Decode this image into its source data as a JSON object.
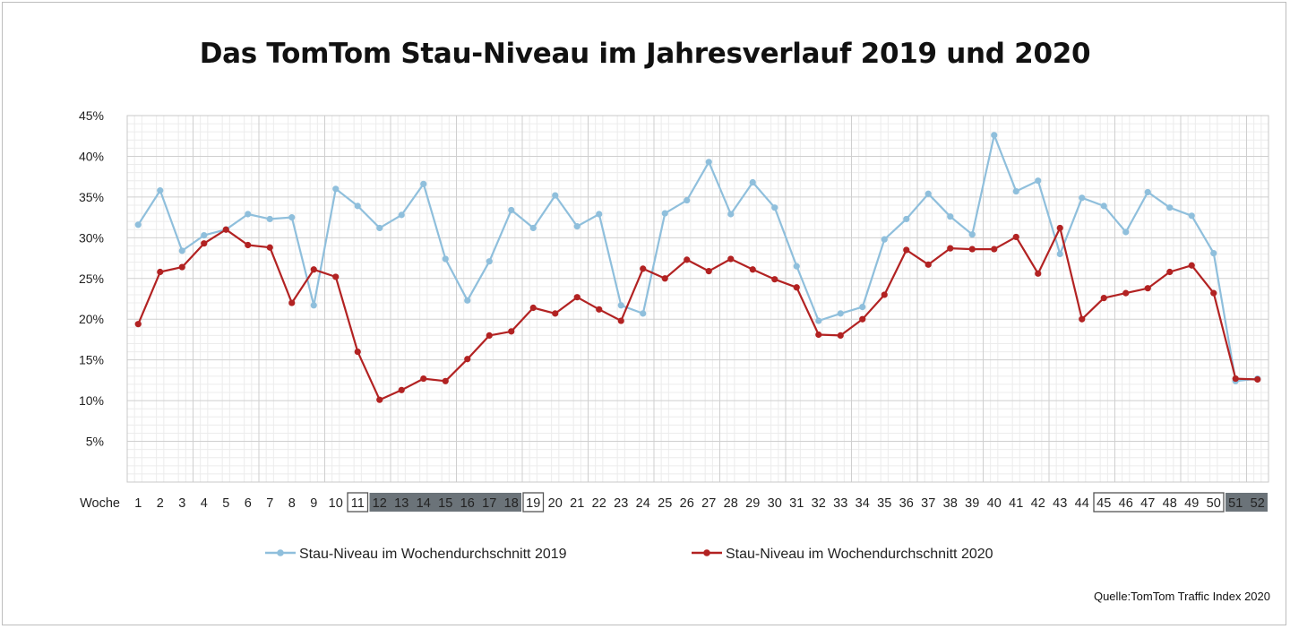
{
  "chart_data": {
    "type": "line",
    "title": "Das TomTom Stau-Niveau im Jahresverlauf 2019 und 2020",
    "xlabel": "Woche",
    "ylabel": "",
    "ylim": [
      0,
      45
    ],
    "y_ticks": [
      "5%",
      "10%",
      "15%",
      "20%",
      "25%",
      "30%",
      "35%",
      "40%",
      "45%"
    ],
    "y_tick_values": [
      5,
      10,
      15,
      20,
      25,
      30,
      35,
      40,
      45
    ],
    "categories": [
      "1",
      "2",
      "3",
      "4",
      "5",
      "6",
      "7",
      "8",
      "9",
      "10",
      "11",
      "12",
      "13",
      "14",
      "15",
      "16",
      "17",
      "18",
      "19",
      "20",
      "21",
      "22",
      "23",
      "24",
      "25",
      "26",
      "27",
      "28",
      "29",
      "30",
      "31",
      "32",
      "33",
      "34",
      "35",
      "36",
      "37",
      "38",
      "39",
      "40",
      "41",
      "42",
      "43",
      "44",
      "45",
      "46",
      "47",
      "48",
      "49",
      "50",
      "51",
      "52"
    ],
    "grid": true,
    "legend_position": "bottom",
    "series": [
      {
        "name": "Stau-Niveau im Wochendurchschnitt 2019",
        "color": "#8fbfdc",
        "values": [
          31.6,
          35.8,
          28.4,
          30.3,
          31.0,
          32.9,
          32.3,
          32.5,
          21.7,
          36.0,
          33.9,
          31.2,
          32.8,
          36.6,
          27.4,
          22.3,
          27.1,
          33.4,
          31.2,
          35.2,
          31.4,
          32.9,
          21.7,
          20.7,
          33.0,
          34.6,
          39.3,
          32.9,
          36.8,
          33.7,
          26.5,
          19.8,
          20.7,
          21.5,
          29.8,
          32.3,
          35.4,
          32.6,
          30.4,
          42.6,
          35.7,
          37.0,
          28.0,
          34.9,
          33.9,
          30.7,
          35.6,
          33.7,
          32.7,
          28.1,
          12.4,
          12.7
        ]
      },
      {
        "name": "Stau-Niveau im Wochendurchschnitt 2020",
        "color": "#b22222",
        "values": [
          19.4,
          25.8,
          26.4,
          29.3,
          31.0,
          29.1,
          28.8,
          22.0,
          26.1,
          25.2,
          16.0,
          10.1,
          11.3,
          12.7,
          12.4,
          15.1,
          18.0,
          18.5,
          21.4,
          20.7,
          22.7,
          21.2,
          19.8,
          26.2,
          25.0,
          27.3,
          25.9,
          27.4,
          26.1,
          24.9,
          23.9,
          18.1,
          18.0,
          20.0,
          23.0,
          28.5,
          26.7,
          28.7,
          28.6,
          28.6,
          30.1,
          25.6,
          31.2,
          20.0,
          22.6,
          23.2,
          23.8,
          25.8,
          26.6,
          23.2,
          12.7,
          12.6
        ]
      }
    ],
    "week_highlights": [
      {
        "weeks": [
          "11"
        ],
        "style": "outline"
      },
      {
        "weeks": [
          "12",
          "13",
          "14",
          "15",
          "16",
          "17",
          "18"
        ],
        "style": "dark"
      },
      {
        "weeks": [
          "19"
        ],
        "style": "outline"
      },
      {
        "weeks": [
          "45",
          "46",
          "47",
          "48",
          "49",
          "50"
        ],
        "style": "outline"
      },
      {
        "weeks": [
          "51",
          "52"
        ],
        "style": "dark"
      }
    ],
    "source_note": "Quelle:TomTom Traffic Index 2020"
  },
  "colors": {
    "highlight_dark": "#6b7379",
    "highlight_outline": "#555555",
    "grid_major": "#cfcfcf",
    "grid_minor": "#ececec"
  }
}
